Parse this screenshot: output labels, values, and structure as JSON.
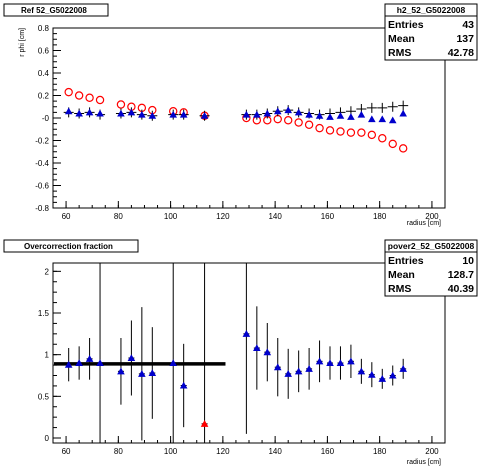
{
  "chart_data": [
    {
      "type": "scatter",
      "title": "Ref 52_G5022008",
      "xlabel": "radius [cm]",
      "ylabel": "r phi [cm]",
      "xlim": [
        55,
        205
      ],
      "ylim": [
        -0.8,
        0.8
      ],
      "xticks": [
        60,
        80,
        100,
        120,
        140,
        160,
        180,
        200
      ],
      "yticks": [
        -0.8,
        -0.6,
        -0.4,
        -0.2,
        0,
        0.2,
        0.4,
        0.6,
        0.8
      ],
      "ytick_labels": [
        "-0.8",
        "-0.6",
        "-0.4",
        "-0.2",
        "-0",
        "0.2",
        "0.4",
        "0.6",
        "0.8"
      ],
      "stats": {
        "name": "h2_52_G5022008",
        "rows": [
          {
            "label": "Entries",
            "value": "43"
          },
          {
            "label": "Mean",
            "value": "137"
          },
          {
            "label": "RMS",
            "value": "42.78"
          }
        ]
      },
      "series": [
        {
          "marker": "open-circle",
          "color": "#ff0000",
          "x": [
            61,
            65,
            69,
            73,
            81,
            85,
            89,
            93,
            101,
            105,
            113,
            129,
            133,
            137,
            141,
            145,
            149,
            153,
            157,
            161,
            165,
            169,
            173,
            177,
            181,
            185,
            189
          ],
          "y": [
            0.23,
            0.2,
            0.18,
            0.16,
            0.12,
            0.1,
            0.09,
            0.07,
            0.06,
            0.05,
            0.02,
            0.0,
            -0.02,
            -0.02,
            -0.01,
            -0.02,
            -0.04,
            -0.06,
            -0.09,
            -0.11,
            -0.12,
            -0.13,
            -0.13,
            -0.15,
            -0.18,
            -0.23,
            -0.27
          ]
        },
        {
          "marker": "cross",
          "color": "#000000",
          "x": [
            61,
            65,
            69,
            73,
            81,
            85,
            89,
            93,
            101,
            105,
            113,
            129,
            133,
            137,
            141,
            145,
            149,
            153,
            157,
            161,
            165,
            169,
            173,
            177,
            181,
            185,
            189
          ],
          "y": [
            0.05,
            0.04,
            0.05,
            0.03,
            0.04,
            0.05,
            0.03,
            0.02,
            0.03,
            0.03,
            0.02,
            0.03,
            0.03,
            0.04,
            0.06,
            0.07,
            0.05,
            0.04,
            0.03,
            0.04,
            0.05,
            0.06,
            0.08,
            0.09,
            0.09,
            0.1,
            0.11
          ]
        },
        {
          "marker": "filled-triangle",
          "color": "#0000cc",
          "x": [
            61,
            65,
            69,
            73,
            81,
            85,
            89,
            93,
            101,
            105,
            113,
            129,
            133,
            137,
            141,
            145,
            149,
            153,
            157,
            161,
            165,
            169,
            173,
            177,
            181,
            185,
            189
          ],
          "y": [
            0.06,
            0.04,
            0.05,
            0.04,
            0.04,
            0.05,
            0.03,
            0.02,
            0.03,
            0.03,
            0.02,
            0.03,
            0.03,
            0.04,
            0.06,
            0.07,
            0.05,
            0.03,
            0.02,
            0.01,
            0.02,
            0.01,
            0.03,
            -0.01,
            -0.01,
            -0.02,
            0.04
          ]
        }
      ]
    },
    {
      "type": "scatter",
      "title": "Overcorrection fraction",
      "xlabel": "radius [cm]",
      "ylabel": "",
      "xlim": [
        55,
        205
      ],
      "ylim": [
        -0.06,
        2.1
      ],
      "xticks": [
        60,
        80,
        100,
        120,
        140,
        160,
        180,
        200
      ],
      "yticks": [
        0,
        0.5,
        1,
        1.5,
        2
      ],
      "ytick_labels": [
        "0",
        "0.5",
        "1",
        "1.5",
        "2"
      ],
      "stats": {
        "name": "pover2_52_G5022008",
        "rows": [
          {
            "label": "Entries",
            "value": "10"
          },
          {
            "label": "Mean",
            "value": "128.7"
          },
          {
            "label": "RMS",
            "value": "40.39"
          }
        ]
      },
      "fit_line": {
        "x": [
          55,
          121
        ],
        "y": 0.89,
        "color": "#000000"
      },
      "series": [
        {
          "marker": "filled-triangle",
          "color": "#0000cc",
          "x": [
            61,
            65,
            69,
            73,
            81,
            85,
            89,
            93,
            101,
            105,
            129,
            133,
            137,
            141,
            145,
            149,
            153,
            157,
            161,
            165,
            169,
            173,
            177,
            181,
            185,
            189
          ],
          "y": [
            0.88,
            0.9,
            0.95,
            0.9,
            0.8,
            0.96,
            0.77,
            0.78,
            0.9,
            0.63,
            1.25,
            1.08,
            1.03,
            0.85,
            0.77,
            0.8,
            0.83,
            0.92,
            0.9,
            0.9,
            0.92,
            0.8,
            0.76,
            0.71,
            0.75,
            0.83
          ],
          "err": [
            0.2,
            0.2,
            0.25,
            1.2,
            0.4,
            0.45,
            0.8,
            0.55,
            1.25,
            0.5,
            1.2,
            0.5,
            0.35,
            0.35,
            0.3,
            0.25,
            0.25,
            0.25,
            0.2,
            0.2,
            0.2,
            0.15,
            0.15,
            0.12,
            0.12,
            0.12
          ]
        },
        {
          "marker": "filled-triangle",
          "color": "#ff0000",
          "x": [
            113
          ],
          "y": [
            0.17
          ],
          "err": [
            2.0
          ]
        }
      ]
    }
  ]
}
